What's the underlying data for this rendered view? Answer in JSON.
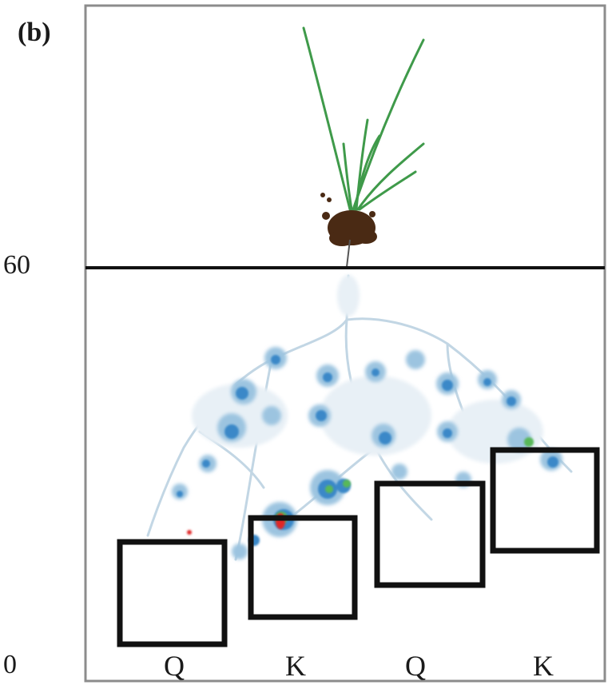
{
  "panel_label": "(b)",
  "axis": {
    "tick_top": "60",
    "tick_bottom": "0"
  },
  "patches": [
    {
      "label": "Q"
    },
    {
      "label": "K"
    },
    {
      "label": "Q"
    },
    {
      "label": "K"
    }
  ],
  "colors": {
    "frame": "#8c8c8c",
    "soil_line": "#111111",
    "patch_border": "#111111",
    "leaf": "#3f9a4a",
    "root_ball": "#4a2a14",
    "root_low": "#b8d0e0",
    "root_mid": "#3a88c8",
    "root_high": "#58b858",
    "root_hot": "#e02828"
  },
  "icons": {
    "plant": "grass-seedling-icon"
  }
}
